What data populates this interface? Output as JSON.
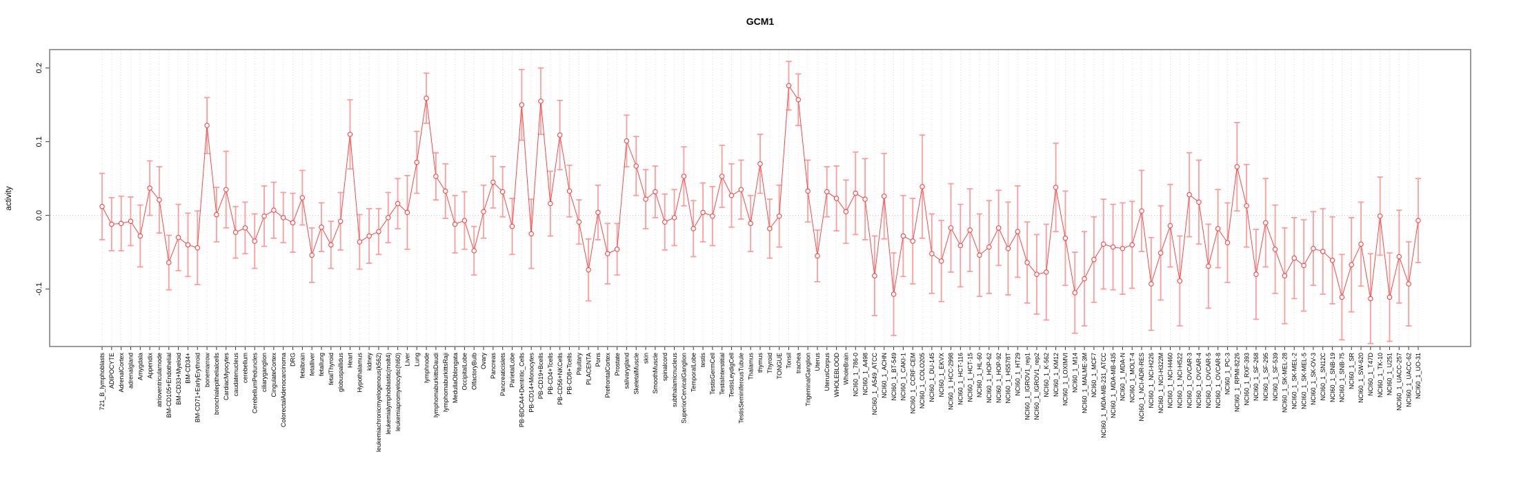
{
  "chart_data": {
    "type": "line",
    "title": "GCM1",
    "xlabel": "",
    "ylabel": "activity",
    "ylim": [
      -0.178,
      0.225
    ],
    "yticks": [
      -0.1,
      0.0,
      0.1,
      0.2
    ],
    "grid": "vertical dashed gridline per category; dotted horizontal line at y=0",
    "legend_position": "none",
    "marker": "open-circle",
    "colors": {
      "series_line": "#ff4444",
      "error_bar": "#ff9393",
      "gridline": "#dcdcdc",
      "zero_line": "#c8c8c8",
      "frame": "#808080",
      "tick": "#333333",
      "text": "#000000",
      "background": "#ffffff"
    },
    "categories": [
      "721_B_lymphoblasts",
      "ADIPOCYTE",
      "AdrenalCortex",
      "adrenalgland",
      "Amygdala",
      "Appendix",
      "atrioventricularnode",
      "BM-CD105+Endothelial",
      "BM-CD33+Myeloid",
      "BM-CD34+",
      "BM-CD71+EarlyErythroid",
      "bonemarrow",
      "bronchialepithelialcells",
      "CardiacMyocytes",
      "caudatenucleus",
      "cerebellum",
      "CerebellumPeduncles",
      "ciliaryganglion",
      "CingulateCortex",
      "ColorectalAdenocarcinoma",
      "DRG",
      "fetalbrain",
      "fetalliver",
      "fetallung",
      "fetalThyroid",
      "globuspallidus",
      "Heart",
      "Hypothalamus",
      "kidney",
      "leukemiachronicmyelogenous(k562)",
      "leukemialymphoblastic(molt4)",
      "leukemiapromyelocytic(hl60)",
      "Liver",
      "Lung",
      "lymphnode",
      "lymphomaburkittsDaudi",
      "lymphomaburkittsRaji",
      "MedullaOblongata",
      "OccipitalLobe",
      "OlfactoryBulb",
      "Ovary",
      "Pancreas",
      "Pancreaticislets",
      "ParietalLobe",
      "PB-BDCA4+Dentritic_Cells",
      "PB-CD14+Monocytes",
      "PB-CD19+Bcells",
      "PB-CD4+Tcells",
      "PB-CD56+NKCells",
      "PB-CD8+Tcells",
      "Pituitary",
      "PLACENTA",
      "Pons",
      "PrefrontalCortex",
      "Prostate",
      "salivarygland",
      "SkeletalMuscle",
      "skin",
      "SmoothMuscle",
      "spinalcord",
      "subthalamicnucleus",
      "SuperiorCervicalGanglion",
      "TemporalLobe",
      "testis",
      "TestisGermCell",
      "TestisInterstitial",
      "TestisLeydigCell",
      "TestisSeminiferousTubule",
      "Thalamus",
      "thymus",
      "Thyroid",
      "TONGUE",
      "Tonsil",
      "trachea",
      "TrigeminalGanglion",
      "Uterus",
      "UterusCorpus",
      "WHOLEBLOOD",
      "WholeBrain",
      "NCI60_1_786-0",
      "NCI60_1_A498",
      "NCI60_1_A549_ATCC",
      "NCI60_1_ACHN",
      "NCI60_1_BT-549",
      "NCI60_1_CAKI-1",
      "NCI60_1_CCRF-CEM",
      "NCI60_1_COLO205",
      "NCI60_1_DU-145",
      "NCI60_1_EKVX",
      "NCI60_1_HCC-2998",
      "NCI60_1_HCT-116",
      "NCI60_1_HCT-15",
      "NCI60_1_HL-60",
      "NCI60_1_HOP-62",
      "NCI60_1_HOP-92",
      "NCI60_1_HS578T",
      "NCI60_1_HT29",
      "NCI60_1_IGROV1_rep1",
      "NCI60_1_IGROV1_rep2",
      "NCI60_1_K-562",
      "NCI60_1_KM12",
      "NCI60_1_LOXIMVI",
      "NCI60_1_M14",
      "NCI60_1_MALME-3M",
      "NCI60_1_MCF7",
      "NCI60_1_MDA-MB-231_ATCC",
      "NCI60_1_MDA-MB-435",
      "NCI60_1_MDA-N",
      "NCI60_1_MOLT-4",
      "NCI60_1_NCI-ADR-RES",
      "NCI60_1_NCI-H226",
      "NCI60_1_NCI-H322M",
      "NCI60_1_NCI-H460",
      "NCI60_1_NCI-H522",
      "NCI60_1_OVCAR-3",
      "NCI60_1_OVCAR-4",
      "NCI60_1_OVCAR-5",
      "NCI60_1_OVCAR-8",
      "NCI60_1_PC-3",
      "NCI60_1_RPMI-8226",
      "NCI60_1_RXF-393",
      "NCI60_1_SF-268",
      "NCI60_1_SF-295",
      "NCI60_1_SF-539",
      "NCI60_1_SK-MEL-28",
      "NCI60_1_SK-MEL-2",
      "NCI60_1_SK-MEL-5",
      "NCI60_1_SK-OV-3",
      "NCI60_1_SN12C",
      "NCI60_1_SNB-19",
      "NCI60_1_SNB-75",
      "NCI60_1_SR",
      "NCI60_1_SW-620",
      "NCI60_1_T47D",
      "NCI60_1_TK-10",
      "NCI60_1_U251",
      "NCI60_1_UACC-257",
      "NCI60_1_UACC-62",
      "NCI60_1_UO-31"
    ],
    "values": [
      0.012,
      -0.012,
      -0.011,
      -0.008,
      -0.028,
      0.037,
      0.021,
      -0.064,
      -0.03,
      -0.04,
      -0.044,
      0.122,
      0.001,
      0.035,
      -0.023,
      -0.017,
      -0.035,
      -0.001,
      0.007,
      -0.003,
      -0.01,
      0.024,
      -0.054,
      -0.016,
      -0.04,
      -0.008,
      0.11,
      -0.036,
      -0.028,
      -0.022,
      -0.003,
      0.016,
      0.004,
      0.072,
      0.159,
      0.053,
      0.033,
      -0.012,
      -0.007,
      -0.048,
      0.005,
      0.045,
      0.032,
      -0.015,
      0.15,
      -0.025,
      0.155,
      0.016,
      0.109,
      0.033,
      -0.009,
      -0.074,
      0.004,
      -0.052,
      -0.046,
      0.101,
      0.067,
      0.022,
      0.032,
      -0.009,
      -0.003,
      0.053,
      -0.018,
      0.004,
      -0.001,
      0.053,
      0.027,
      0.035,
      -0.011,
      0.07,
      -0.018,
      -0.001,
      0.176,
      0.157,
      0.033,
      -0.055,
      0.032,
      0.023,
      0.005,
      0.03,
      0.022,
      -0.082,
      0.026,
      -0.107,
      -0.028,
      -0.035,
      0.039,
      -0.052,
      -0.062,
      -0.017,
      -0.041,
      -0.02,
      -0.054,
      -0.043,
      -0.017,
      -0.045,
      -0.022,
      -0.064,
      -0.08,
      -0.077,
      0.038,
      -0.031,
      -0.105,
      -0.086,
      -0.06,
      -0.039,
      -0.043,
      -0.045,
      -0.04,
      0.006,
      -0.093,
      -0.051,
      -0.014,
      -0.089,
      0.028,
      0.018,
      -0.069,
      -0.018,
      -0.037,
      0.066,
      0.013,
      -0.08,
      -0.01,
      -0.046,
      -0.082,
      -0.058,
      -0.068,
      -0.045,
      -0.049,
      -0.061,
      -0.111,
      -0.067,
      -0.039,
      -0.113,
      -0.001,
      -0.111,
      -0.056,
      -0.093,
      -0.007
    ],
    "errors": [
      0.045,
      0.036,
      0.037,
      0.033,
      0.042,
      0.037,
      0.045,
      0.037,
      0.045,
      0.043,
      0.05,
      0.038,
      0.037,
      0.052,
      0.035,
      0.035,
      0.037,
      0.041,
      0.038,
      0.034,
      0.04,
      0.037,
      0.037,
      0.033,
      0.032,
      0.039,
      0.047,
      0.037,
      0.037,
      0.031,
      0.034,
      0.034,
      0.05,
      0.042,
      0.034,
      0.032,
      0.037,
      0.039,
      0.039,
      0.033,
      0.036,
      0.035,
      0.034,
      0.038,
      0.048,
      0.047,
      0.045,
      0.044,
      0.047,
      0.035,
      0.03,
      0.042,
      0.037,
      0.041,
      0.035,
      0.035,
      0.04,
      0.04,
      0.035,
      0.038,
      0.038,
      0.04,
      0.038,
      0.04,
      0.04,
      0.042,
      0.043,
      0.04,
      0.038,
      0.04,
      0.04,
      0.042,
      0.033,
      0.035,
      0.042,
      0.035,
      0.034,
      0.044,
      0.043,
      0.056,
      0.055,
      0.054,
      0.058,
      0.056,
      0.055,
      0.058,
      0.07,
      0.054,
      0.055,
      0.06,
      0.056,
      0.056,
      0.056,
      0.063,
      0.051,
      0.063,
      0.062,
      0.055,
      0.054,
      0.065,
      0.06,
      0.064,
      0.055,
      0.064,
      0.058,
      0.061,
      0.058,
      0.062,
      0.059,
      0.055,
      0.063,
      0.064,
      0.056,
      0.061,
      0.057,
      0.057,
      0.057,
      0.053,
      0.054,
      0.06,
      0.056,
      0.061,
      0.06,
      0.06,
      0.065,
      0.055,
      0.062,
      0.05,
      0.058,
      0.059,
      0.058,
      0.064,
      0.057,
      0.061,
      0.053,
      0.06,
      0.063,
      0.057,
      0.057
    ]
  }
}
